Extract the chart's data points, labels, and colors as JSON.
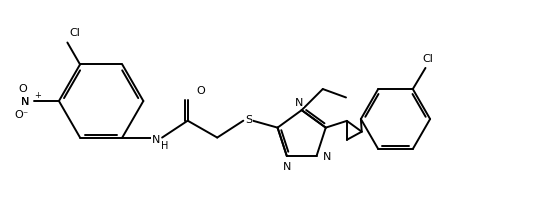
{
  "background_color": "#ffffff",
  "line_color": "#000000",
  "line_width": 1.4,
  "font_size": 8,
  "figsize": [
    5.42,
    2.07
  ],
  "dpi": 100,
  "xlim": [
    0,
    10.84
  ],
  "ylim": [
    0,
    4.14
  ],
  "scale": 0.85
}
